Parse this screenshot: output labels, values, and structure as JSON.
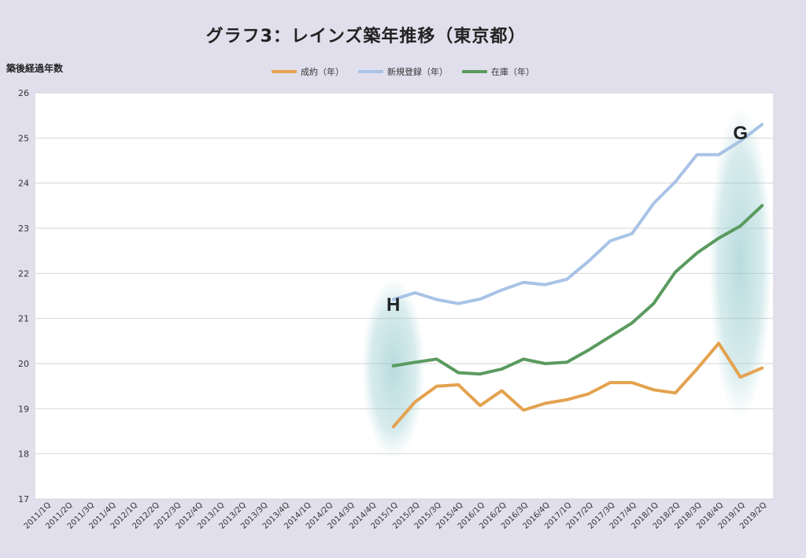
{
  "chart_data": {
    "type": "line",
    "title": "グラフ3：レインズ築年推移（東京都）",
    "ylabel": "築後経過年数",
    "xlabel": "",
    "ylim": [
      17,
      26
    ],
    "yticks": [
      17,
      18,
      19,
      20,
      21,
      22,
      23,
      24,
      25,
      26
    ],
    "grid": true,
    "legend_position": "top",
    "categories": [
      "2011/1Q",
      "2011/2Q",
      "2011/3Q",
      "2011/4Q",
      "2012/1Q",
      "2012/2Q",
      "2012/3Q",
      "2012/4Q",
      "2013/1Q",
      "2013/2Q",
      "2013/3Q",
      "2013/4Q",
      "2014/1Q",
      "2014/2Q",
      "2014/3Q",
      "2014/4Q",
      "2015/1Q",
      "2015/2Q",
      "2015/3Q",
      "2015/4Q",
      "2016/1Q",
      "2016/2Q",
      "2016/3Q",
      "2016/4Q",
      "2017/1Q",
      "2017/2Q",
      "2017/3Q",
      "2017/4Q",
      "2018/1Q",
      "2018/2Q",
      "2018/3Q",
      "2018/4Q",
      "2019/1Q",
      "2019/2Q"
    ],
    "series": [
      {
        "name": "成約（年）",
        "color": "#e4a24f",
        "values": [
          null,
          null,
          null,
          null,
          null,
          null,
          null,
          null,
          null,
          null,
          null,
          null,
          null,
          null,
          null,
          null,
          18.6,
          19.15,
          19.5,
          19.53,
          19.07,
          19.4,
          18.97,
          19.12,
          19.2,
          19.33,
          19.58,
          19.58,
          19.42,
          19.35,
          19.88,
          20.45,
          19.7,
          19.9
        ]
      },
      {
        "name": "新規登録（年）",
        "color": "#a8c3e6",
        "values": [
          null,
          null,
          null,
          null,
          null,
          null,
          null,
          null,
          null,
          null,
          null,
          null,
          null,
          null,
          null,
          null,
          21.42,
          21.57,
          21.42,
          21.33,
          21.43,
          21.63,
          21.8,
          21.75,
          21.87,
          22.27,
          22.72,
          22.88,
          23.55,
          24.03,
          24.63,
          24.63,
          24.93,
          25.3
        ]
      },
      {
        "name": "在庫（年）",
        "color": "#5a9a5e",
        "values": [
          null,
          null,
          null,
          null,
          null,
          null,
          null,
          null,
          null,
          null,
          null,
          null,
          null,
          null,
          null,
          null,
          19.95,
          20.03,
          20.1,
          19.8,
          19.77,
          19.88,
          20.1,
          20.0,
          20.03,
          20.3,
          20.6,
          20.9,
          21.33,
          22.03,
          22.45,
          22.78,
          23.05,
          23.5
        ]
      }
    ],
    "annotations": [
      {
        "label": "H",
        "category": "2015/1Q",
        "y_range": [
          17.9,
          21.9
        ]
      },
      {
        "label": "G",
        "category": "2019/1Q",
        "y_range": [
          18.8,
          25.7
        ]
      }
    ]
  }
}
